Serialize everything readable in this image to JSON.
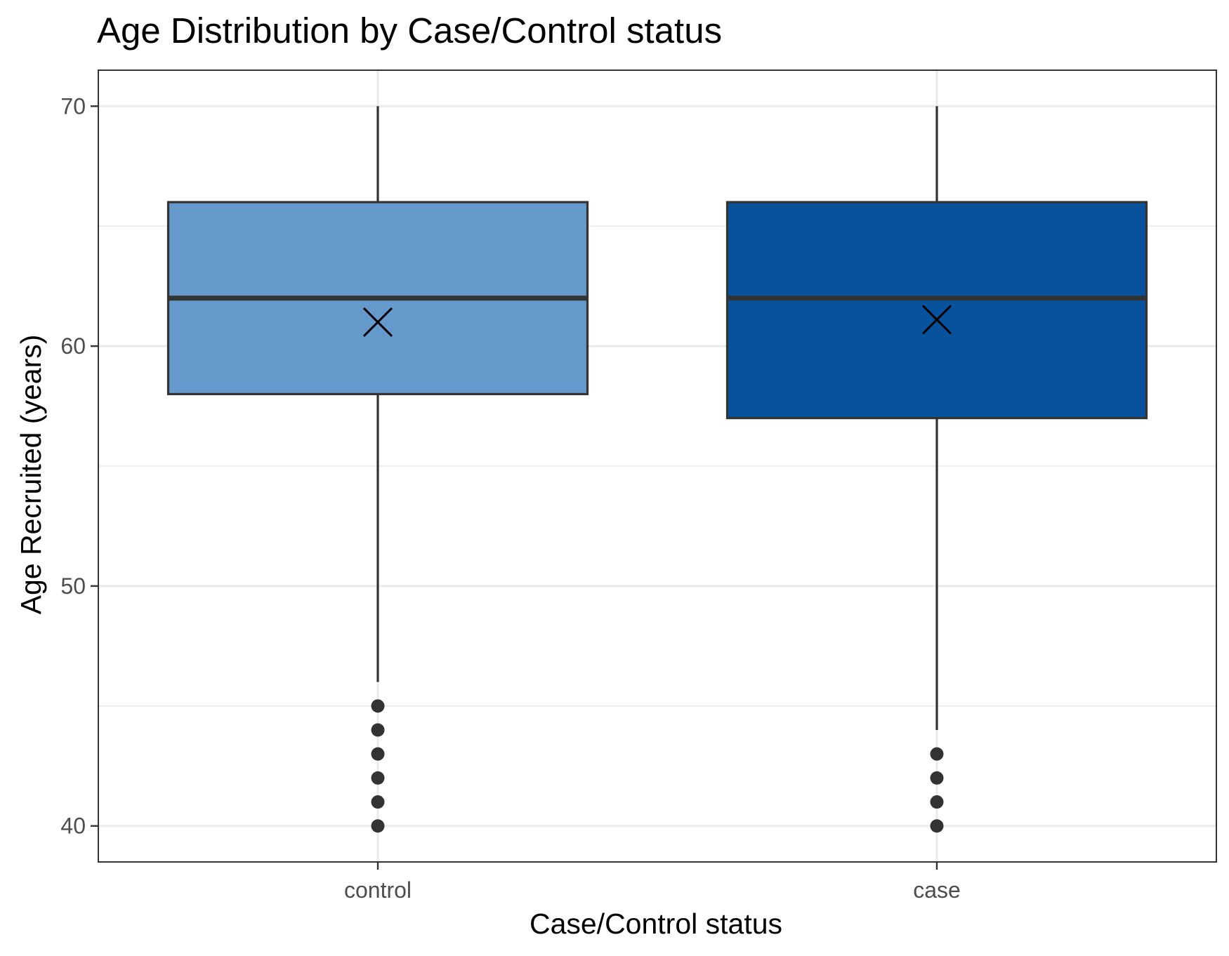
{
  "chart_data": {
    "type": "boxplot",
    "title": "Age Distribution by Case/Control status",
    "xlabel": "Case/Control status",
    "ylabel": "Age Recruited (years)",
    "categories": [
      "control",
      "case"
    ],
    "ylim": [
      38.5,
      71.5
    ],
    "yticks": [
      40,
      50,
      60,
      70
    ],
    "yminor": [
      45,
      55,
      65
    ],
    "grid": true,
    "series": [
      {
        "category": "control",
        "whisker_low": 46,
        "q1": 58,
        "median": 62,
        "q3": 66,
        "whisker_high": 70,
        "mean": 61,
        "outliers": [
          40,
          41,
          42,
          43,
          44,
          45
        ],
        "fill": "#6699cc"
      },
      {
        "category": "case",
        "whisker_low": 44,
        "q1": 57,
        "median": 62,
        "q3": 66,
        "whisker_high": 70,
        "mean": 61.1,
        "outliers": [
          40,
          41,
          42,
          43
        ],
        "fill": "#08519c"
      }
    ],
    "colors": {
      "box_outline": "#333333",
      "grid": "#ebebeb",
      "panel_border": "#333333",
      "mean_marker": "#000000"
    }
  }
}
